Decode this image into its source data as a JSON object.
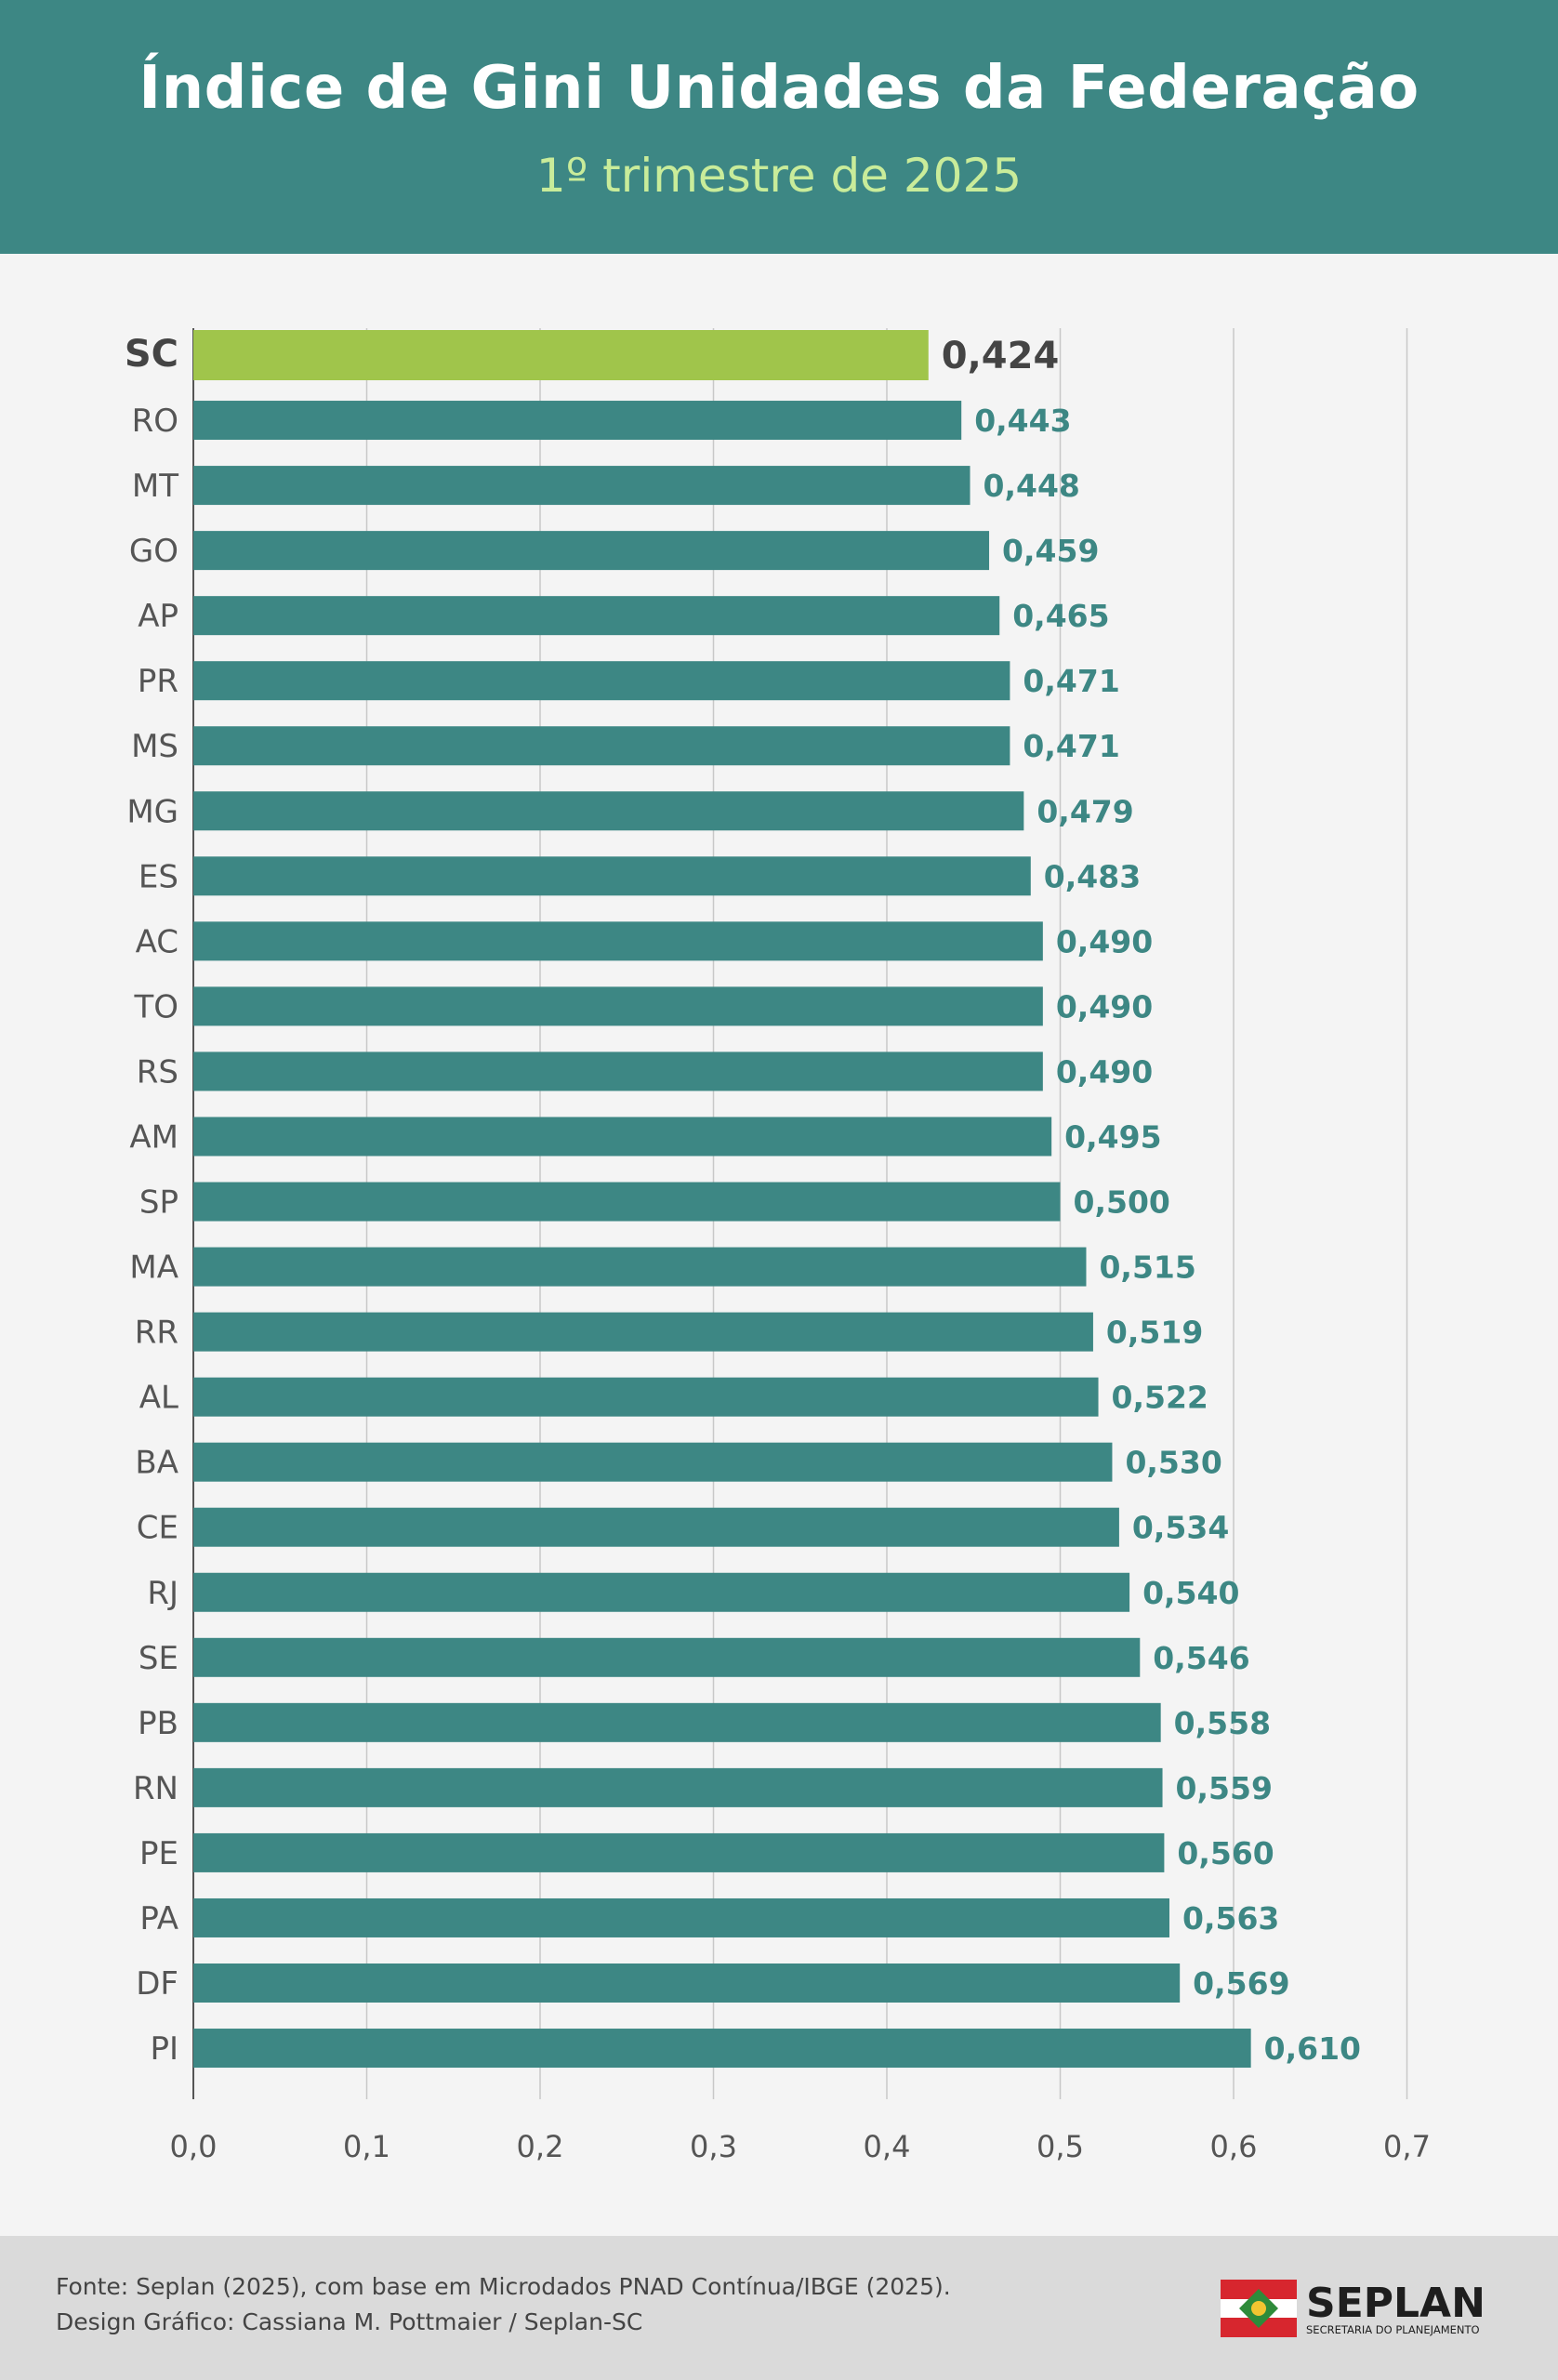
{
  "header": {
    "title": "Índice de Gini Unidades da Federação",
    "subtitle": "1º trimestre de 2025"
  },
  "chart_data": {
    "type": "bar",
    "orientation": "horizontal",
    "categories": [
      "SC",
      "RO",
      "MT",
      "GO",
      "AP",
      "PR",
      "MS",
      "MG",
      "ES",
      "AC",
      "TO",
      "RS",
      "AM",
      "SP",
      "MA",
      "RR",
      "AL",
      "BA",
      "CE",
      "RJ",
      "SE",
      "PB",
      "RN",
      "PE",
      "PA",
      "DF",
      "PI"
    ],
    "values": [
      0.424,
      0.443,
      0.448,
      0.459,
      0.465,
      0.471,
      0.471,
      0.479,
      0.483,
      0.49,
      0.49,
      0.49,
      0.495,
      0.5,
      0.515,
      0.519,
      0.522,
      0.53,
      0.534,
      0.54,
      0.546,
      0.558,
      0.559,
      0.56,
      0.563,
      0.569,
      0.61
    ],
    "value_labels": [
      "0,424",
      "0,443",
      "0,448",
      "0,459",
      "0,465",
      "0,471",
      "0,471",
      "0,479",
      "0,483",
      "0,490",
      "0,490",
      "0,490",
      "0,495",
      "0,500",
      "0,515",
      "0,519",
      "0,522",
      "0,530",
      "0,534",
      "0,540",
      "0,546",
      "0,558",
      "0,559",
      "0,560",
      "0,563",
      "0,569",
      "0,610"
    ],
    "highlight": "SC",
    "xlim": [
      0,
      0.7
    ],
    "xticks": [
      "0,0",
      "0,1",
      "0,2",
      "0,3",
      "0,4",
      "0,5",
      "0,6",
      "0,7"
    ],
    "grid": "vertical",
    "title": "Índice de Gini Unidades da Federação",
    "subtitle": "1º trimestre de 2025",
    "colors": {
      "bar": "#3d8784",
      "highlight_bar": "#a0c54b",
      "value_label": "#3d8784",
      "highlight_label": "#444444",
      "grid": "#c8c8c8",
      "axis": "#555555"
    }
  },
  "footer": {
    "source": "Fonte: Seplan (2025), com base em Microdados PNAD Contínua/IBGE (2025).",
    "design": "Design Gráfico: Cassiana M. Pottmaier / Seplan-SC",
    "logo_text": "SEPLAN",
    "logo_subtext": "SECRETARIA DO PLANEJAMENTO"
  }
}
